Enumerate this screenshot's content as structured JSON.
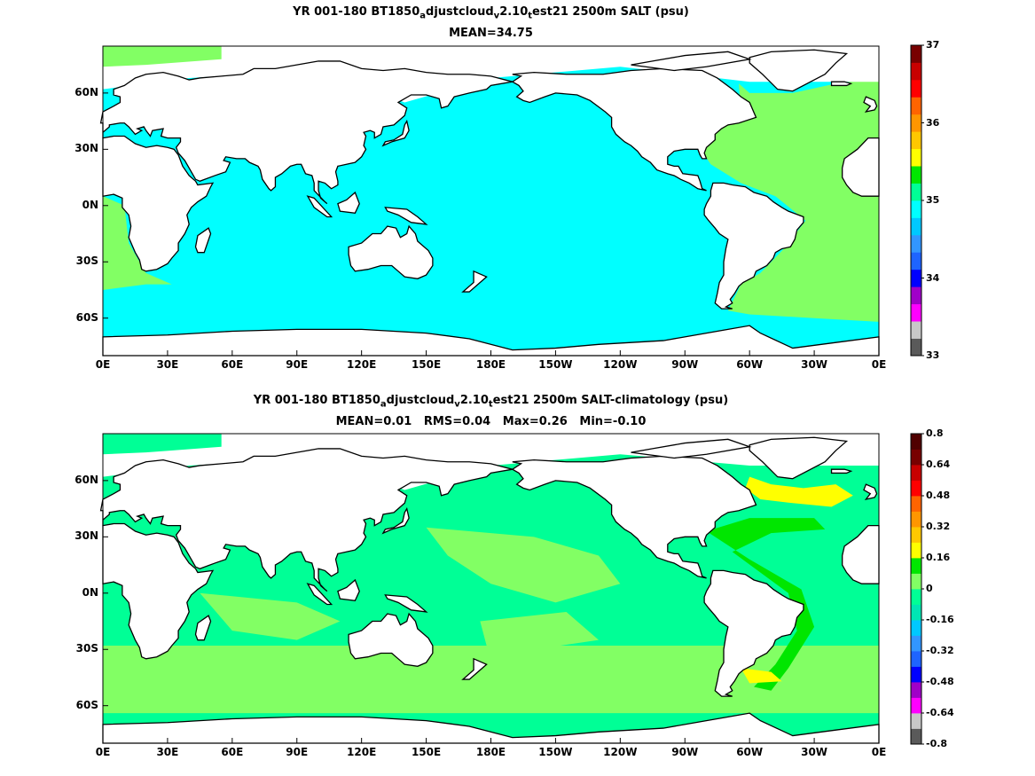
{
  "chart_data": [
    {
      "type": "heatmap",
      "title_parts": {
        "pre": "YR 001-180 BT1850",
        "s1": "a",
        "mid1": "djustcloud",
        "s2": "v",
        "mid2": "2.10",
        "s3": "t",
        "post": "est21 2500m SALT (psu)"
      },
      "subtitle": "MEAN=34.75",
      "x_ticks": [
        "0E",
        "30E",
        "60E",
        "90E",
        "120E",
        "150E",
        "180E",
        "150W",
        "120W",
        "90W",
        "60W",
        "30W",
        "0E"
      ],
      "y_ticks": [
        "60N",
        "30N",
        "0N",
        "30S",
        "60S"
      ],
      "xlim": [
        0,
        360
      ],
      "ylim": [
        -80,
        85
      ],
      "colorbar": {
        "min": 33,
        "max": 37,
        "tick_labels": [
          "33",
          "34",
          "35",
          "36",
          "37"
        ],
        "tick_values": [
          33,
          34,
          35,
          36,
          37
        ],
        "bin_colors": [
          "#5a5a5a",
          "#c8c8c8",
          "#ff00ff",
          "#a000c8",
          "#0000ff",
          "#1e64ff",
          "#3296ff",
          "#00c8ff",
          "#00ffff",
          "#00ff96",
          "#00e600",
          "#ffff00",
          "#ffc800",
          "#ff9600",
          "#ff6400",
          "#ff0000",
          "#c80000",
          "#780000"
        ]
      },
      "dominant_values": {
        "global_deep": 34.72,
        "atlantic_deep": 34.9
      },
      "mean": 34.75
    },
    {
      "type": "heatmap",
      "title_parts": {
        "pre": "YR 001-180 BT1850",
        "s1": "a",
        "mid1": "djustcloud",
        "s2": "v",
        "mid2": "2.10",
        "s3": "t",
        "post": "est21 2500m SALT-climatology (psu)"
      },
      "subtitle": "MEAN=0.01   RMS=0.04   Max=0.26   Min=-0.10",
      "x_ticks": [
        "0E",
        "30E",
        "60E",
        "90E",
        "120E",
        "150E",
        "180E",
        "150W",
        "120W",
        "90W",
        "60W",
        "30W",
        "0E"
      ],
      "y_ticks": [
        "60N",
        "30N",
        "0N",
        "30S",
        "60S"
      ],
      "xlim": [
        0,
        360
      ],
      "ylim": [
        -80,
        85
      ],
      "colorbar": {
        "min": -0.8,
        "max": 0.8,
        "tick_labels": [
          "-0.8",
          "-0.64",
          "-0.48",
          "-0.32",
          "-0.16",
          "0",
          "0.16",
          "0.32",
          "0.48",
          "0.64",
          "0.8"
        ],
        "tick_values": [
          -0.8,
          -0.64,
          -0.48,
          -0.32,
          -0.16,
          0,
          0.16,
          0.32,
          0.48,
          0.64,
          0.8
        ],
        "bin_colors": [
          "#5a5a5a",
          "#c8c8c8",
          "#ff00ff",
          "#a000c8",
          "#0000ff",
          "#1e64ff",
          "#3296ff",
          "#00c8ff",
          "#00e6b4",
          "#00ff96",
          "#82ff64",
          "#00e600",
          "#ffff00",
          "#ffc800",
          "#ff9600",
          "#ff6400",
          "#ff0000",
          "#c80000",
          "#780000",
          "#500000"
        ]
      },
      "mean": 0.01,
      "rms": 0.04,
      "max": 0.26,
      "min": -0.1
    }
  ],
  "colors": {
    "ocean_top": "#00ffff",
    "atlantic_top": "#82ff64",
    "anom_base": "#00ff96",
    "anom_light": "#82ff64",
    "anom_pos": "#00e600",
    "anom_high": "#ffff00",
    "land": "#ffffff",
    "coast": "#000000"
  }
}
